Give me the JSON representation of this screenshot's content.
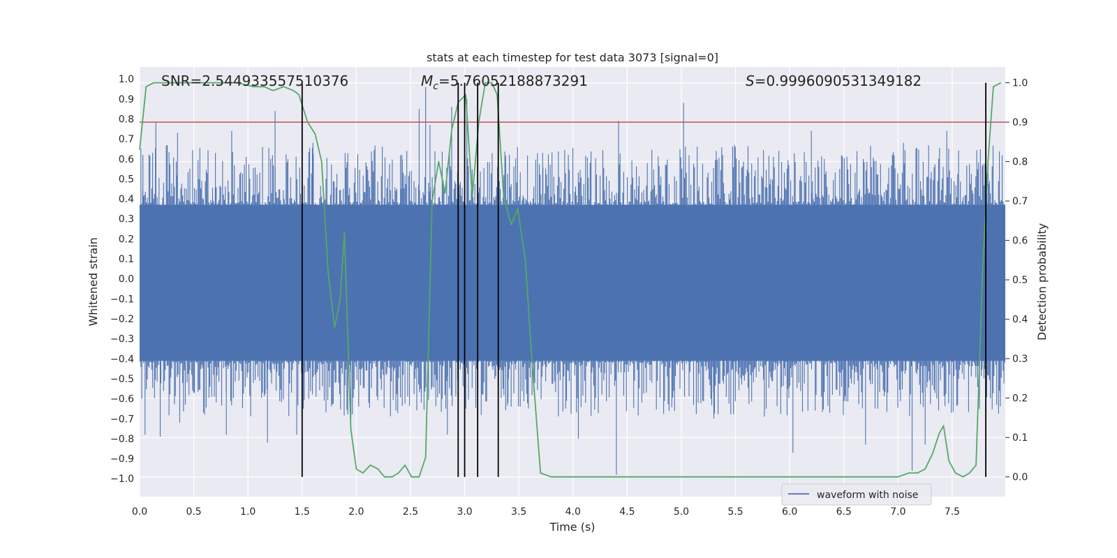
{
  "chart_data": {
    "type": "line",
    "title": "stats at each timestep for test data 3073 [signal=0]",
    "xlabel": "Time (s)",
    "ylabel_left": "Whitened strain",
    "ylabel_right": "Detection probability",
    "xlim": [
      0.0,
      7.99
    ],
    "ylim_left": [
      -1.09,
      1.06
    ],
    "ylim_right": [
      -0.05,
      1.04
    ],
    "x_ticks": [
      0.0,
      0.5,
      1.0,
      1.5,
      2.0,
      2.5,
      3.0,
      3.5,
      4.0,
      4.5,
      5.0,
      5.5,
      6.0,
      6.5,
      7.0,
      7.5
    ],
    "x_tick_labels": [
      "0.0",
      "0.5",
      "1.0",
      "1.5",
      "2.0",
      "2.5",
      "3.0",
      "3.5",
      "4.0",
      "4.5",
      "5.0",
      "5.5",
      "6.0",
      "6.5",
      "7.0",
      "7.5"
    ],
    "y_left_ticks": [
      1.0,
      0.9,
      0.8,
      0.7,
      0.6,
      0.5,
      0.4,
      0.3,
      0.2,
      0.1,
      0.0,
      -0.1,
      -0.2,
      -0.3,
      -0.4,
      -0.5,
      -0.6,
      -0.7,
      -0.8,
      -0.9,
      -1.0
    ],
    "y_left_tick_labels": [
      "1.0",
      "0.9",
      "0.8",
      "0.7",
      "0.6",
      "0.5",
      "0.4",
      "0.3",
      "0.2",
      "0.1",
      "0.0",
      "−0.1",
      "−0.2",
      "−0.3",
      "−0.4",
      "−0.5",
      "−0.6",
      "−0.7",
      "−0.8",
      "−0.9",
      "−1.0"
    ],
    "y_right_ticks": [
      1.0,
      0.9,
      0.8,
      0.7,
      0.6,
      0.5,
      0.4,
      0.3,
      0.2,
      0.1,
      0.0
    ],
    "y_right_tick_labels": [
      "1.0",
      "0.9",
      "0.8",
      "0.7",
      "0.6",
      "0.5",
      "0.4",
      "0.3",
      "0.2",
      "0.1",
      "0.0"
    ],
    "grid": true,
    "series": [
      {
        "name": "waveform with noise",
        "axis": "left",
        "color": "#4c72b0",
        "style": "dense noise",
        "core_range": [
          -0.41,
          0.37
        ],
        "peaks": [
          {
            "x": 0.03,
            "y": 0.62
          },
          {
            "x": 0.05,
            "y": -0.78
          },
          {
            "x": 0.12,
            "y": 0.63
          },
          {
            "x": 0.15,
            "y": 0.78
          },
          {
            "x": 0.19,
            "y": -0.79
          },
          {
            "x": 0.35,
            "y": 0.73
          },
          {
            "x": 0.37,
            "y": -0.72
          },
          {
            "x": 0.6,
            "y": -0.68
          },
          {
            "x": 0.7,
            "y": 0.63
          },
          {
            "x": 0.8,
            "y": -0.78
          },
          {
            "x": 0.85,
            "y": 0.74
          },
          {
            "x": 1.18,
            "y": -0.82
          },
          {
            "x": 1.25,
            "y": 0.84
          },
          {
            "x": 1.45,
            "y": -0.78
          },
          {
            "x": 1.6,
            "y": 0.68
          },
          {
            "x": 1.95,
            "y": -0.7
          },
          {
            "x": 2.42,
            "y": 0.62
          },
          {
            "x": 2.58,
            "y": 0.85
          },
          {
            "x": 2.6,
            "y": -0.62
          },
          {
            "x": 2.64,
            "y": 0.96
          },
          {
            "x": 2.68,
            "y": 0.77
          },
          {
            "x": 2.84,
            "y": -0.78
          },
          {
            "x": 2.88,
            "y": 0.86
          },
          {
            "x": 3.02,
            "y": 0.9
          },
          {
            "x": 3.4,
            "y": -0.62
          },
          {
            "x": 3.72,
            "y": 0.63
          },
          {
            "x": 4.05,
            "y": -0.8
          },
          {
            "x": 4.4,
            "y": -0.98
          },
          {
            "x": 4.42,
            "y": 0.79
          },
          {
            "x": 5.02,
            "y": 0.88
          },
          {
            "x": 5.3,
            "y": -0.7
          },
          {
            "x": 5.9,
            "y": 0.64
          },
          {
            "x": 6.03,
            "y": -0.87
          },
          {
            "x": 6.2,
            "y": 0.74
          },
          {
            "x": 6.7,
            "y": -0.83
          },
          {
            "x": 7.05,
            "y": 0.68
          },
          {
            "x": 7.13,
            "y": -0.96
          },
          {
            "x": 7.25,
            "y": -0.83
          },
          {
            "x": 7.45,
            "y": 0.74
          },
          {
            "x": 7.83,
            "y": 0.61
          }
        ]
      },
      {
        "name": "Detection probability",
        "axis": "right",
        "color": "#55a868",
        "x": [
          0.0,
          0.06,
          0.13,
          0.3,
          0.5,
          0.7,
          0.9,
          1.05,
          1.15,
          1.23,
          1.33,
          1.42,
          1.47,
          1.55,
          1.62,
          1.68,
          1.74,
          1.8,
          1.85,
          1.89,
          1.95,
          2.0,
          2.06,
          2.13,
          2.2,
          2.26,
          2.33,
          2.39,
          2.45,
          2.51,
          2.58,
          2.64,
          2.7,
          2.76,
          2.82,
          2.88,
          2.94,
          3.01,
          3.07,
          3.13,
          3.19,
          3.25,
          3.3,
          3.36,
          3.43,
          3.49,
          3.56,
          3.62,
          3.7,
          3.8,
          4.0,
          4.2,
          4.5,
          5.0,
          5.5,
          5.6,
          6.0,
          6.5,
          7.0,
          7.1,
          7.18,
          7.25,
          7.32,
          7.38,
          7.42,
          7.47,
          7.53,
          7.6,
          7.66,
          7.72,
          7.78,
          7.83,
          7.88,
          7.95
        ],
        "y": [
          0.83,
          0.99,
          1.0,
          1.0,
          1.0,
          1.0,
          1.0,
          0.99,
          0.99,
          0.98,
          0.99,
          0.98,
          0.97,
          0.9,
          0.87,
          0.8,
          0.52,
          0.38,
          0.45,
          0.62,
          0.12,
          0.02,
          0.01,
          0.03,
          0.02,
          0.0,
          0.0,
          0.01,
          0.03,
          0.0,
          0.0,
          0.05,
          0.7,
          0.8,
          0.72,
          0.88,
          0.95,
          0.97,
          0.71,
          0.9,
          1.0,
          1.0,
          0.97,
          0.71,
          0.64,
          0.68,
          0.55,
          0.3,
          0.01,
          0.0,
          0.0,
          0.0,
          0.0,
          0.0,
          0.0,
          0.0,
          0.0,
          0.0,
          0.0,
          0.01,
          0.01,
          0.02,
          0.06,
          0.11,
          0.13,
          0.04,
          0.01,
          0.0,
          0.01,
          0.03,
          0.52,
          0.8,
          0.99,
          1.0
        ]
      }
    ],
    "threshold": {
      "y": 0.9,
      "axis": "right",
      "color": "#c44e52"
    },
    "vlines": [
      1.5,
      2.94,
      3.0,
      3.12,
      3.31,
      7.81
    ],
    "annotations": {
      "snr": "SNR=2.544933557510376",
      "mc": "=5.76052188873291",
      "mc_symbol": "M",
      "mc_sub": "c",
      "s": "=0.9996090531349182",
      "s_symbol": "S"
    },
    "legend": {
      "label": "waveform with noise",
      "position": "lower-right"
    },
    "colors": {
      "background": "#eaeaf2",
      "grid": "#ffffff",
      "vline": "#000000"
    }
  }
}
